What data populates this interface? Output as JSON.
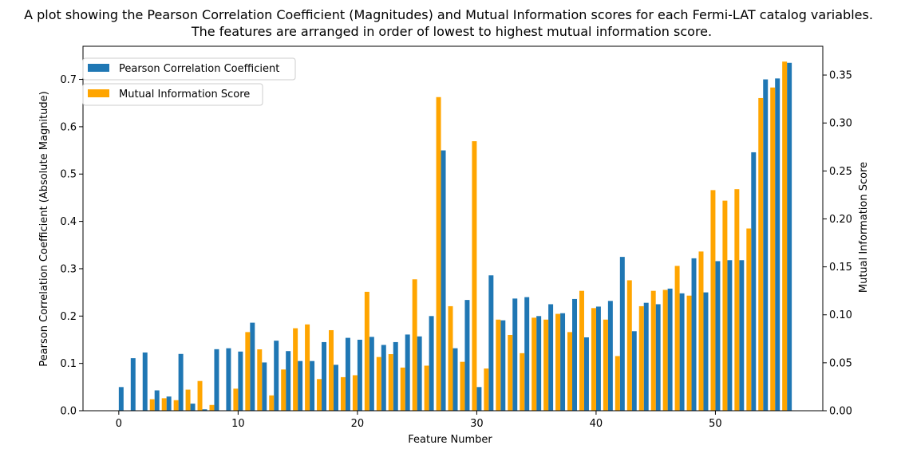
{
  "chart_data": {
    "type": "bar",
    "title_lines": [
      "A plot showing the Pearson Correlation Coefficient (Magnitudes) and Mutual Information scores for each Fermi-LAT catalog variables.",
      "The features are arranged in order of lowest to highest mutual information score."
    ],
    "xlabel": "Feature Number",
    "ylabel_left": "Pearson Correlation Coefficient (Absolute Magnitude)",
    "ylabel_right": "Mutual Information Score",
    "xlim": [
      -3,
      59
    ],
    "ylim_left": [
      0,
      0.77
    ],
    "ylim_right": [
      0,
      0.38
    ],
    "x_ticks": [
      0,
      10,
      20,
      30,
      40,
      50
    ],
    "y_ticks_left": [
      "0.0",
      "0.1",
      "0.2",
      "0.3",
      "0.4",
      "0.5",
      "0.6",
      "0.7"
    ],
    "y_ticks_right": [
      "0.00",
      "0.05",
      "0.10",
      "0.15",
      "0.20",
      "0.25",
      "0.30",
      "0.35"
    ],
    "legend_position": "upper-left",
    "colors": {
      "pearson": "#1f77b4",
      "mutual_info": "#ffa500"
    },
    "series": [
      {
        "name": "Pearson Correlation Coefficient",
        "axis": "left",
        "values": [
          0.05,
          0.111,
          0.123,
          0.043,
          0.03,
          0.12,
          0.015,
          0.003,
          0.13,
          0.132,
          0.125,
          0.186,
          0.102,
          0.148,
          0.126,
          0.105,
          0.105,
          0.145,
          0.097,
          0.154,
          0.15,
          0.156,
          0.139,
          0.145,
          0.161,
          0.157,
          0.2,
          0.55,
          0.132,
          0.234,
          0.05,
          0.286,
          0.191,
          0.237,
          0.24,
          0.2,
          0.225,
          0.206,
          0.236,
          0.155,
          0.22,
          0.232,
          0.325,
          0.168,
          0.228,
          0.225,
          0.258,
          0.248,
          0.322,
          0.25,
          0.316,
          0.318,
          0.318,
          0.546,
          0.7,
          0.702,
          0.735
        ]
      },
      {
        "name": "Mutual Information Score",
        "axis": "right",
        "values": [
          0,
          0,
          0,
          0.012,
          0.013,
          0.011,
          0.022,
          0.031,
          0.006,
          0,
          0.023,
          0.082,
          0.064,
          0.016,
          0.043,
          0.086,
          0.09,
          0.033,
          0.084,
          0.035,
          0.037,
          0.124,
          0.056,
          0.059,
          0.045,
          0.137,
          0.047,
          0.327,
          0.109,
          0.051,
          0.281,
          0.044,
          0.095,
          0.079,
          0.06,
          0.097,
          0.095,
          0.101,
          0.082,
          0.125,
          0.107,
          0.095,
          0.057,
          0.136,
          0.109,
          0.125,
          0.126,
          0.151,
          0.12,
          0.166,
          0.23,
          0.219,
          0.231,
          0.19,
          0.326,
          0.337,
          0.364
        ]
      }
    ]
  }
}
